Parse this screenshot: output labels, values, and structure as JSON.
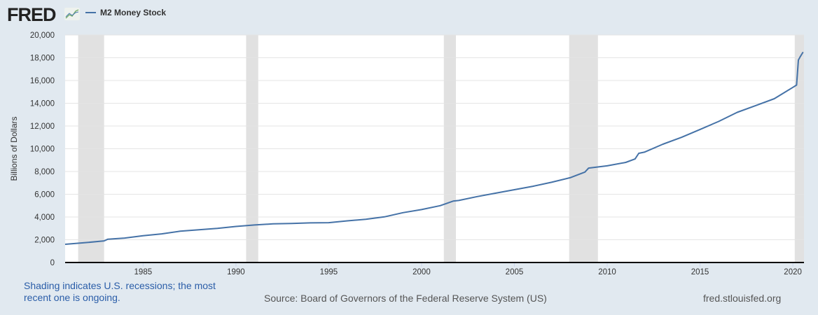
{
  "header": {
    "logo": "FRED",
    "legend_label": "M2 Money Stock"
  },
  "footer": {
    "shading_note": "Shading indicates U.S. recessions; the most recent one is ongoing.",
    "source": "Source: Board of Governors of the Federal Reserve System (US)",
    "site": "fred.stlouisfed.org"
  },
  "colors": {
    "line": "#4572a7",
    "recession": "#e1e1e1",
    "background": "#e1e9f0"
  },
  "chart_data": {
    "type": "line",
    "title": "M2 Money Stock",
    "ylabel": "Billions of Dollars",
    "xlabel": "",
    "xlim": [
      1980.8,
      2020.6
    ],
    "ylim": [
      0,
      20000
    ],
    "yticks": [
      0,
      2000,
      4000,
      6000,
      8000,
      10000,
      12000,
      14000,
      16000,
      18000,
      20000
    ],
    "ytick_labels": [
      "0",
      "2,000",
      "4,000",
      "6,000",
      "8,000",
      "10,000",
      "12,000",
      "14,000",
      "16,000",
      "18,000",
      "20,000"
    ],
    "xticks": [
      1985,
      1990,
      1995,
      2000,
      2005,
      2010,
      2015,
      2020
    ],
    "xtick_labels": [
      "1985",
      "1990",
      "1995",
      "2000",
      "2005",
      "2010",
      "2015",
      "2020"
    ],
    "grid": true,
    "recessions": [
      [
        1981.5,
        1982.9
      ],
      [
        1990.55,
        1991.2
      ],
      [
        2001.2,
        2001.85
      ],
      [
        2007.95,
        2009.5
      ],
      [
        2020.1,
        2020.6
      ]
    ],
    "series": [
      {
        "name": "M2 Money Stock",
        "x": [
          1980.8,
          1982,
          1982.9,
          1983.1,
          1984,
          1985,
          1986,
          1987,
          1988,
          1989,
          1990,
          1991,
          1992,
          1993,
          1994,
          1995,
          1996,
          1997,
          1998,
          1999,
          2000,
          2001,
          2001.7,
          2002,
          2003,
          2004,
          2005,
          2006,
          2007,
          2008,
          2008.8,
          2009,
          2010,
          2011,
          2011.5,
          2011.7,
          2012,
          2013,
          2014,
          2015,
          2016,
          2017,
          2018,
          2019,
          2020.0,
          2020.2,
          2020.3,
          2020.4,
          2020.55
        ],
        "values": [
          1600,
          1760,
          1900,
          2050,
          2150,
          2350,
          2520,
          2750,
          2880,
          3000,
          3170,
          3300,
          3400,
          3430,
          3480,
          3500,
          3660,
          3800,
          4010,
          4380,
          4650,
          5000,
          5400,
          5450,
          5800,
          6100,
          6400,
          6700,
          7050,
          7450,
          7950,
          8300,
          8500,
          8800,
          9100,
          9600,
          9700,
          10400,
          11000,
          11700,
          12400,
          13200,
          13800,
          14400,
          15400,
          15600,
          17800,
          18100,
          18500
        ]
      }
    ]
  }
}
